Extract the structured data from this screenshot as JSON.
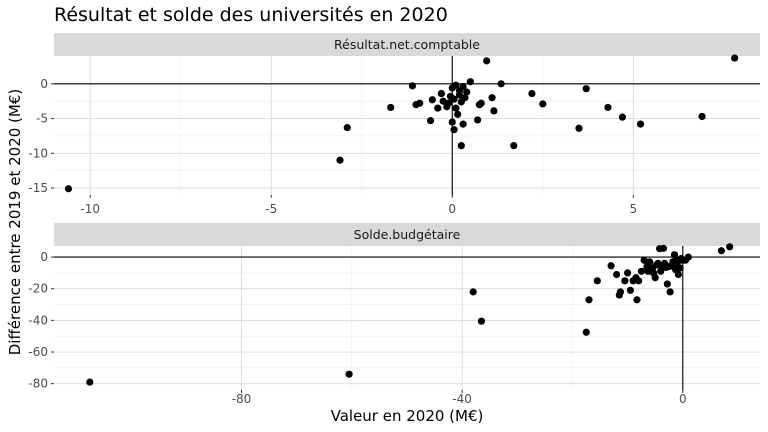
{
  "chart_data": {
    "type": "scatter",
    "title": "Résultat et solde des universités en 2020",
    "xlabel": "Valeur en 2020 (M€)",
    "ylabel": "Différence entre 2019 et 2020 (M€)",
    "grid": true,
    "reference_lines": {
      "x": 0,
      "y": 0
    },
    "point_color": "#000000",
    "strip_color": "#d9d9d9",
    "panels": [
      {
        "name": "Résultat.net.comptable",
        "xlim": [
          -11,
          8.5
        ],
        "ylim": [
          -16,
          4
        ],
        "x_ticks": [
          -10,
          -5,
          0,
          5
        ],
        "x_tick_labels": [
          "-10",
          "-5",
          "0",
          "5"
        ],
        "y_ticks": [
          -15,
          -10,
          -5,
          0
        ],
        "y_tick_labels": [
          "-15",
          "-10",
          "-5",
          "0"
        ],
        "points": [
          [
            -10.6,
            -15.1
          ],
          [
            -3.1,
            -11
          ],
          [
            -2.9,
            -6.3
          ],
          [
            -1.7,
            -3.4
          ],
          [
            -1.1,
            -0.3
          ],
          [
            -1.0,
            -3
          ],
          [
            -0.9,
            -2.8
          ],
          [
            -0.6,
            -5.3
          ],
          [
            -0.55,
            -2.3
          ],
          [
            -0.4,
            -3.5
          ],
          [
            -0.3,
            -1.4
          ],
          [
            -0.25,
            -2.5
          ],
          [
            -0.15,
            -3.3
          ],
          [
            -0.1,
            -2.8
          ],
          [
            -0.05,
            -1.8
          ],
          [
            0.0,
            -0.6
          ],
          [
            0.0,
            -5.5
          ],
          [
            0.05,
            -6.6
          ],
          [
            0.05,
            -2.2
          ],
          [
            0.1,
            -0.2
          ],
          [
            0.1,
            -3.5
          ],
          [
            0.15,
            -4.4
          ],
          [
            0.2,
            -1.0
          ],
          [
            0.2,
            -1.6
          ],
          [
            0.25,
            -2.6
          ],
          [
            0.25,
            -8.9
          ],
          [
            0.3,
            -5.8
          ],
          [
            0.3,
            -0.4
          ],
          [
            0.35,
            -2.0
          ],
          [
            0.4,
            -1.2
          ],
          [
            0.5,
            0.3
          ],
          [
            0.7,
            -5.2
          ],
          [
            0.75,
            -3.0
          ],
          [
            0.8,
            -2.8
          ],
          [
            0.95,
            3.3
          ],
          [
            1.1,
            -2.0
          ],
          [
            1.15,
            -3.9
          ],
          [
            1.35,
            0.0
          ],
          [
            1.7,
            -8.9
          ],
          [
            2.2,
            -1.4
          ],
          [
            2.5,
            -2.9
          ],
          [
            3.5,
            -6.4
          ],
          [
            3.7,
            -0.7
          ],
          [
            4.3,
            -3.4
          ],
          [
            4.7,
            -4.8
          ],
          [
            5.2,
            -5.8
          ],
          [
            6.9,
            -4.7
          ],
          [
            7.8,
            3.7
          ]
        ]
      },
      {
        "name": "Solde.budgétaire",
        "xlim": [
          -114,
          14
        ],
        "ylim": [
          -84,
          7
        ],
        "x_ticks": [
          -80,
          -40,
          0
        ],
        "x_tick_labels": [
          "-80",
          "-40",
          "0"
        ],
        "y_ticks": [
          -80,
          -60,
          -40,
          -20,
          0
        ],
        "y_tick_labels": [
          "-80",
          "-60",
          "-40",
          "-20",
          "0"
        ],
        "points": [
          [
            -107.5,
            -79
          ],
          [
            -60.5,
            -74
          ],
          [
            -38,
            -22
          ],
          [
            -36.5,
            -40.5
          ],
          [
            -17.5,
            -47.5
          ],
          [
            -17,
            -27
          ],
          [
            -15.5,
            -15
          ],
          [
            -13,
            -5.5
          ],
          [
            -12,
            -11
          ],
          [
            -11.5,
            -24
          ],
          [
            -11.3,
            -22
          ],
          [
            -10.5,
            -15
          ],
          [
            -10,
            -10
          ],
          [
            -9.5,
            -21
          ],
          [
            -9,
            -15
          ],
          [
            -8.5,
            -13
          ],
          [
            -8.3,
            -27
          ],
          [
            -8,
            -15
          ],
          [
            -7.5,
            -9
          ],
          [
            -7,
            -2
          ],
          [
            -6.5,
            -6
          ],
          [
            -6.3,
            -9
          ],
          [
            -6,
            -3
          ],
          [
            -5.5,
            -7
          ],
          [
            -5.3,
            -10
          ],
          [
            -5,
            -13
          ],
          [
            -4.8,
            -5
          ],
          [
            -4.5,
            -4
          ],
          [
            -4.2,
            5.3
          ],
          [
            -4,
            -9
          ],
          [
            -3.8,
            -7
          ],
          [
            -3.5,
            5.5
          ],
          [
            -3.3,
            -4
          ],
          [
            -3,
            -6.5
          ],
          [
            -2.8,
            -17
          ],
          [
            -2.5,
            -6
          ],
          [
            -2.3,
            -22
          ],
          [
            -2,
            -5.5
          ],
          [
            -1.8,
            -3
          ],
          [
            -1.5,
            1.5
          ],
          [
            -1.3,
            -8
          ],
          [
            -1.2,
            -2
          ],
          [
            -1,
            -4
          ],
          [
            -0.8,
            -11
          ],
          [
            -0.5,
            -7
          ],
          [
            -0.3,
            -1
          ],
          [
            0,
            -2
          ],
          [
            0.5,
            -2
          ],
          [
            1,
            0
          ],
          [
            7,
            4
          ],
          [
            8.5,
            6.5
          ]
        ]
      }
    ]
  }
}
